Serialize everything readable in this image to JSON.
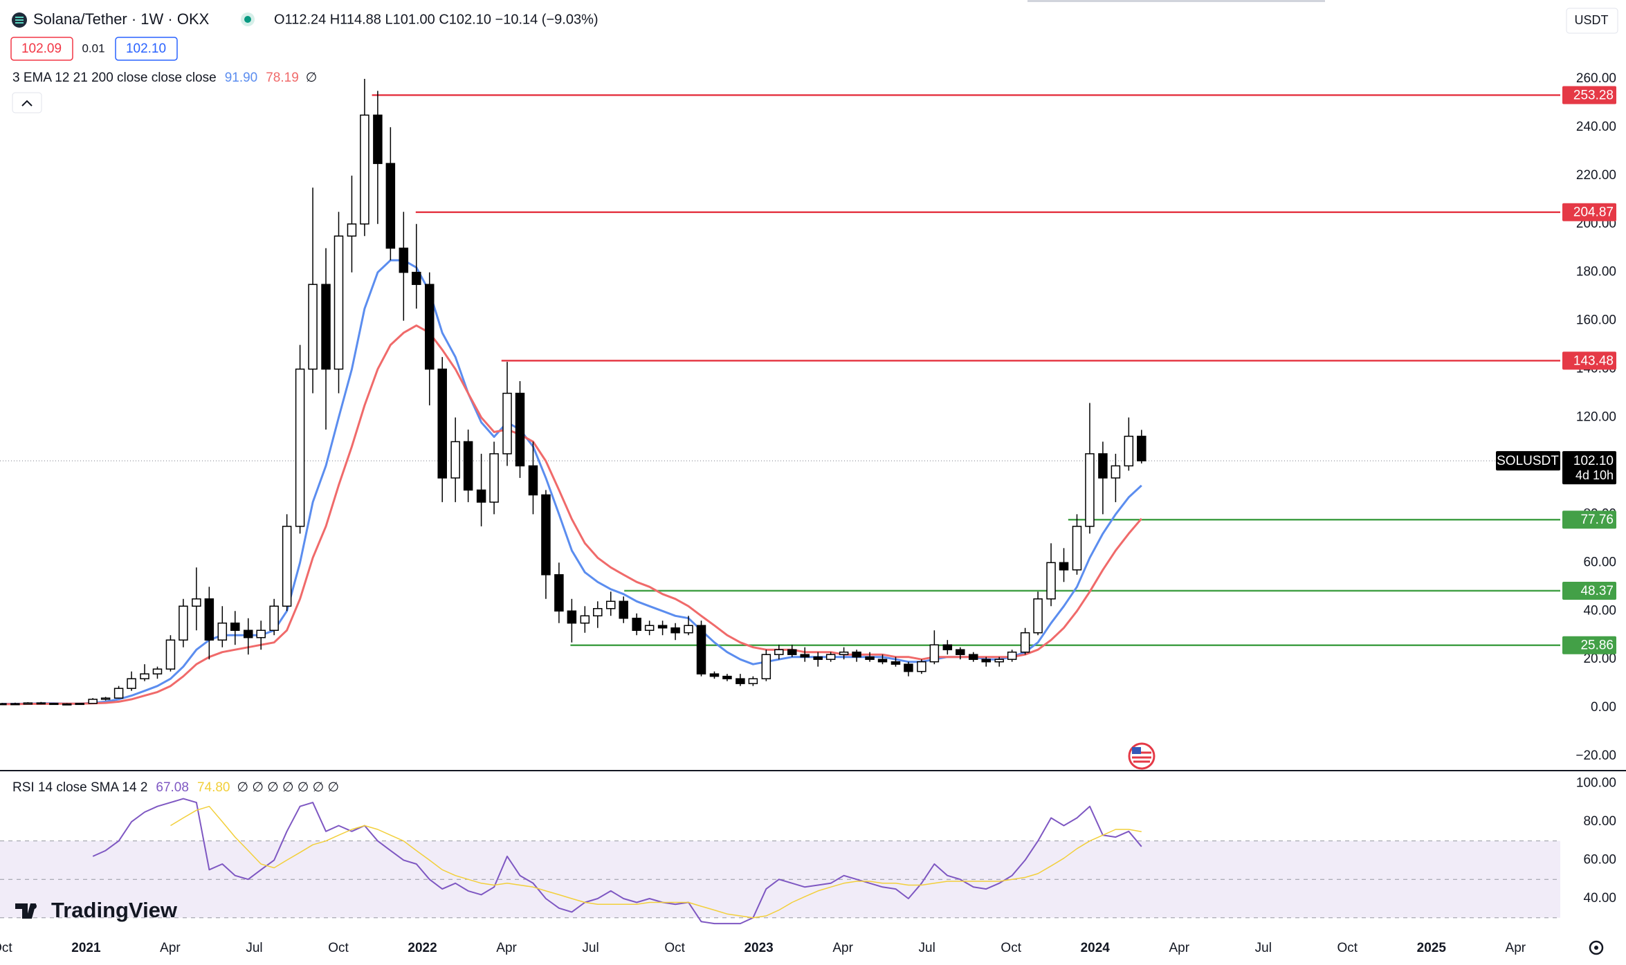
{
  "header": {
    "title": "Solana/Tether · 1W · OKX",
    "ohlc": "O112.24 H114.88 L101.00 C102.10 −10.14 (−9.03%)",
    "bid": "102.09",
    "spread": "0.01",
    "ask": "102.10",
    "currency": "USDT",
    "overlay_legend": "3 EMA 12 21 200 close close close",
    "overlay_extra": "∅",
    "indicator_extra": "∅ ∅ ∅ ∅ ∅ ∅ ∅",
    "symbol_tag": "SOLUSDT",
    "countdown": "4d 10h",
    "logo": "TradingView"
  },
  "chart_data": {
    "type": "candlestick",
    "up_color": "#ffffff",
    "down_color": "#000000",
    "xlim": [
      2020.744,
      2025.383
    ],
    "xticks": [
      {
        "value": 2020.75,
        "label": "Oct"
      },
      2021,
      {
        "value": 2021.25,
        "label": "Apr"
      },
      {
        "value": 2021.5,
        "label": "Jul"
      },
      {
        "value": 2021.75,
        "label": "Oct"
      },
      2022,
      {
        "value": 2022.25,
        "label": "Apr"
      },
      {
        "value": 2022.5,
        "label": "Jul"
      },
      {
        "value": 2022.75,
        "label": "Oct"
      },
      2023,
      {
        "value": 2023.25,
        "label": "Apr"
      },
      {
        "value": 2023.5,
        "label": "Jul"
      },
      {
        "value": 2023.75,
        "label": "Oct"
      },
      2024,
      {
        "value": 2024.25,
        "label": "Apr"
      },
      {
        "value": 2024.5,
        "label": "Jul"
      },
      {
        "value": 2024.75,
        "label": "Oct"
      },
      2025,
      {
        "value": 2025.25,
        "label": "Apr"
      }
    ],
    "ylim": [
      -25.7,
      291.3
    ],
    "yticks": [
      {
        "value": 260,
        "label": "260.00"
      },
      {
        "value": 240,
        "label": "240.00"
      },
      {
        "value": 220,
        "label": "220.00"
      },
      {
        "value": 200,
        "label": "200.00"
      },
      {
        "value": 180,
        "label": "180.00"
      },
      {
        "value": 160,
        "label": "160.00"
      },
      {
        "value": 140,
        "label": "140.00"
      },
      {
        "value": 120,
        "label": "120.00"
      },
      {
        "value": 100,
        "label": "100.00"
      },
      {
        "value": 80,
        "label": "80.00"
      },
      {
        "value": 60,
        "label": "60.00"
      },
      {
        "value": 40,
        "label": "40.00"
      },
      {
        "value": 20,
        "label": "20.00"
      },
      {
        "value": 0,
        "label": "0.00"
      },
      {
        "value": -20,
        "label": "−20.00"
      }
    ],
    "x": [
      2020.75,
      2020.789,
      2020.827,
      2020.866,
      2020.904,
      2020.943,
      2020.981,
      2021.02,
      2021.058,
      2021.097,
      2021.135,
      2021.174,
      2021.212,
      2021.251,
      2021.289,
      2021.328,
      2021.366,
      2021.405,
      2021.443,
      2021.482,
      2021.52,
      2021.559,
      2021.597,
      2021.636,
      2021.674,
      2021.713,
      2021.751,
      2021.79,
      2021.828,
      2021.867,
      2021.905,
      2021.944,
      2021.982,
      2022.021,
      2022.059,
      2022.098,
      2022.136,
      2022.175,
      2022.213,
      2022.252,
      2022.29,
      2022.329,
      2022.367,
      2022.406,
      2022.444,
      2022.483,
      2022.521,
      2022.56,
      2022.598,
      2022.637,
      2022.675,
      2022.714,
      2022.752,
      2022.791,
      2022.829,
      2022.868,
      2022.906,
      2022.945,
      2022.983,
      2023.022,
      2023.06,
      2023.099,
      2023.137,
      2023.176,
      2023.214,
      2023.253,
      2023.291,
      2023.33,
      2023.368,
      2023.407,
      2023.445,
      2023.484,
      2023.522,
      2023.561,
      2023.599,
      2023.638,
      2023.676,
      2023.715,
      2023.753,
      2023.792,
      2023.83,
      2023.869,
      2023.907,
      2023.946,
      2023.984,
      2024.023,
      2024.061,
      2024.1,
      2024.138
    ],
    "ohlc": [
      [
        1.5,
        2.0,
        1.3,
        1.7
      ],
      [
        1.7,
        2.1,
        1.3,
        1.5
      ],
      [
        1.5,
        2.3,
        1.4,
        2.0
      ],
      [
        2.0,
        2.4,
        1.6,
        1.8
      ],
      [
        1.8,
        2.0,
        1.4,
        1.5
      ],
      [
        1.5,
        1.9,
        1.2,
        1.6
      ],
      [
        1.6,
        2.0,
        1.4,
        1.8
      ],
      [
        1.8,
        4.0,
        1.7,
        3.5
      ],
      [
        3.5,
        4.5,
        3.0,
        4.0
      ],
      [
        4.0,
        9,
        3.8,
        8
      ],
      [
        8,
        15,
        7,
        12
      ],
      [
        12,
        18,
        11,
        14
      ],
      [
        14,
        17,
        12,
        16
      ],
      [
        16,
        30,
        15,
        28
      ],
      [
        28,
        45,
        25,
        42
      ],
      [
        42,
        58,
        32,
        45
      ],
      [
        45,
        50,
        20,
        28
      ],
      [
        28,
        42,
        25,
        35
      ],
      [
        35,
        40,
        26,
        32
      ],
      [
        32,
        37,
        22,
        29
      ],
      [
        29,
        36,
        24,
        32
      ],
      [
        32,
        45,
        30,
        42
      ],
      [
        42,
        80,
        40,
        75
      ],
      [
        75,
        150,
        72,
        140
      ],
      [
        140,
        215,
        130,
        175
      ],
      [
        175,
        190,
        115,
        140
      ],
      [
        140,
        205,
        130,
        195
      ],
      [
        195,
        220,
        180,
        200
      ],
      [
        200,
        260,
        195,
        245
      ],
      [
        245,
        255,
        200,
        225
      ],
      [
        225,
        240,
        185,
        190
      ],
      [
        190,
        205,
        160,
        180
      ],
      [
        180,
        200,
        165,
        175
      ],
      [
        175,
        180,
        125,
        140
      ],
      [
        140,
        145,
        85,
        95
      ],
      [
        95,
        120,
        85,
        110
      ],
      [
        110,
        115,
        85,
        90
      ],
      [
        90,
        105,
        75,
        85
      ],
      [
        85,
        110,
        80,
        105
      ],
      [
        105,
        143,
        100,
        130
      ],
      [
        130,
        135,
        95,
        100
      ],
      [
        100,
        110,
        80,
        88
      ],
      [
        88,
        90,
        45,
        55
      ],
      [
        55,
        60,
        35,
        40
      ],
      [
        40,
        45,
        27,
        35
      ],
      [
        35,
        42,
        31,
        38
      ],
      [
        38,
        44,
        33,
        41
      ],
      [
        41,
        48,
        38,
        44
      ],
      [
        44,
        46,
        35,
        37
      ],
      [
        37,
        39,
        30,
        32
      ],
      [
        32,
        36,
        30,
        34
      ],
      [
        34,
        36,
        30,
        33
      ],
      [
        33,
        35,
        28,
        31
      ],
      [
        31,
        38,
        30,
        34
      ],
      [
        34,
        36,
        13,
        14
      ],
      [
        14,
        15,
        12,
        13
      ],
      [
        13,
        14,
        11,
        12
      ],
      [
        12,
        14,
        9,
        10
      ],
      [
        10,
        13,
        9,
        12
      ],
      [
        12,
        24,
        11,
        22
      ],
      [
        22,
        26,
        20,
        24
      ],
      [
        24,
        26,
        21,
        22
      ],
      [
        22,
        25,
        19,
        21
      ],
      [
        21,
        23,
        17,
        20
      ],
      [
        20,
        23,
        19,
        22
      ],
      [
        22,
        25,
        20,
        23
      ],
      [
        23,
        24,
        19,
        21
      ],
      [
        21,
        23,
        19,
        20
      ],
      [
        20,
        22,
        18,
        19
      ],
      [
        19,
        21,
        17,
        18
      ],
      [
        18,
        19,
        13,
        15
      ],
      [
        15,
        20,
        14,
        19
      ],
      [
        19,
        32,
        18,
        26
      ],
      [
        26,
        28,
        22,
        24
      ],
      [
        24,
        25,
        20,
        22
      ],
      [
        22,
        23,
        19,
        20
      ],
      [
        20,
        21,
        17,
        19
      ],
      [
        19,
        21,
        17,
        20
      ],
      [
        20,
        24,
        19,
        23
      ],
      [
        23,
        33,
        22,
        31
      ],
      [
        31,
        48,
        30,
        45
      ],
      [
        45,
        68,
        42,
        60
      ],
      [
        60,
        66,
        52,
        57
      ],
      [
        57,
        80,
        55,
        75
      ],
      [
        75,
        126,
        72,
        105
      ],
      [
        105,
        110,
        80,
        95
      ],
      [
        95,
        105,
        85,
        100
      ],
      [
        100,
        120,
        98,
        112.24
      ],
      [
        112.24,
        114.88,
        101.0,
        102.1
      ]
    ],
    "overlays": [
      {
        "color": "#5b8def",
        "value_label": "91.90",
        "values": [
          1.6,
          1.6,
          1.7,
          1.8,
          1.8,
          1.7,
          1.7,
          2,
          2.5,
          3.5,
          5,
          7,
          9,
          12,
          17,
          24,
          28,
          30,
          30,
          30,
          30,
          32,
          40,
          60,
          85,
          100,
          120,
          140,
          165,
          180,
          185,
          185,
          182,
          172,
          155,
          145,
          130,
          118,
          112,
          118,
          115,
          108,
          95,
          80,
          65,
          56,
          52,
          49,
          47,
          44,
          42,
          40,
          38,
          37,
          32,
          27,
          23,
          20,
          18,
          19,
          20,
          21,
          21,
          21,
          21,
          21,
          21,
          21,
          21,
          20,
          19,
          19,
          20,
          21,
          21,
          21,
          20,
          20,
          21,
          23,
          27,
          35,
          42,
          50,
          62,
          72,
          80,
          87,
          91.9
        ]
      },
      {
        "color": "#f06a6a",
        "value_label": "78.19",
        "values": [
          1.5,
          1.5,
          1.6,
          1.6,
          1.7,
          1.7,
          1.7,
          1.8,
          2,
          2.5,
          3.5,
          5,
          6.5,
          9,
          13,
          18,
          21,
          23,
          24,
          25,
          26,
          27,
          32,
          45,
          62,
          75,
          92,
          108,
          125,
          140,
          150,
          155,
          158,
          155,
          148,
          140,
          130,
          120,
          114,
          115,
          113,
          110,
          102,
          90,
          78,
          68,
          62,
          58,
          55,
          52,
          50,
          47,
          45,
          42,
          38,
          34,
          30,
          27,
          25,
          24,
          24,
          24,
          23,
          23,
          23,
          22,
          22,
          22,
          22,
          21,
          21,
          20,
          21,
          21,
          21,
          21,
          21,
          21,
          21,
          22,
          24,
          28,
          33,
          40,
          48,
          57,
          65,
          72,
          78.19
        ]
      }
    ],
    "levels": [
      {
        "value": 253.28,
        "x": 2021.85,
        "color": "#e53946"
      },
      {
        "value": 204.87,
        "x": 2021.98,
        "color": "#e53946"
      },
      {
        "value": 143.48,
        "x": 2022.235,
        "color": "#e53946"
      },
      {
        "value": 77.76,
        "x": 2023.92,
        "color": "#43a047"
      },
      {
        "value": 48.37,
        "x": 2022.6,
        "color": "#43a047"
      },
      {
        "value": 25.86,
        "x": 2022.44,
        "color": "#43a047"
      }
    ],
    "last_price": {
      "value": 102.1,
      "label": "102.10"
    },
    "indicator": {
      "title": "RSI 14 close SMA 14 2",
      "ylim": [
        22.7,
        105.9
      ],
      "yticks": [
        {
          "value": 100,
          "label": "100.00"
        },
        {
          "value": 80,
          "label": "80.00"
        },
        {
          "value": 60,
          "label": "60.00"
        },
        {
          "value": 40,
          "label": "40.00"
        }
      ],
      "band": [
        30,
        70
      ],
      "levels": [
        70,
        50
      ],
      "lines": [
        {
          "color": "#7e57c2",
          "value_label": "67.08",
          "values": [
            null,
            null,
            null,
            null,
            null,
            null,
            null,
            62,
            65,
            70,
            80,
            85,
            88,
            90,
            92,
            90,
            55,
            58,
            52,
            50,
            55,
            60,
            75,
            88,
            90,
            75,
            78,
            75,
            78,
            70,
            65,
            60,
            58,
            50,
            45,
            48,
            44,
            42,
            46,
            62,
            52,
            48,
            40,
            35,
            33,
            38,
            40,
            44,
            40,
            38,
            40,
            38,
            37,
            38,
            28,
            27,
            27,
            27,
            30,
            45,
            50,
            48,
            46,
            47,
            48,
            52,
            50,
            48,
            46,
            45,
            40,
            48,
            58,
            52,
            50,
            46,
            45,
            48,
            52,
            60,
            70,
            82,
            78,
            82,
            88,
            73,
            72,
            75,
            67.08
          ]
        },
        {
          "color": "#f2cf3a",
          "value_label": "74.80",
          "values": [
            null,
            null,
            null,
            null,
            null,
            null,
            null,
            null,
            null,
            null,
            null,
            null,
            null,
            78,
            82,
            86,
            88,
            80,
            72,
            65,
            58,
            56,
            60,
            64,
            68,
            70,
            73,
            76,
            78,
            76,
            73,
            70,
            65,
            60,
            55,
            52,
            50,
            48,
            47,
            48,
            47,
            46,
            44,
            42,
            40,
            38,
            37,
            37,
            37,
            37,
            38,
            38,
            38,
            38,
            36,
            34,
            32,
            31,
            30,
            31,
            34,
            38,
            41,
            44,
            46,
            48,
            49,
            49,
            48,
            48,
            47,
            47,
            48,
            49,
            49,
            49,
            49,
            49,
            50,
            51,
            53,
            57,
            61,
            66,
            70,
            73,
            76,
            76,
            74.8
          ]
        }
      ]
    }
  }
}
